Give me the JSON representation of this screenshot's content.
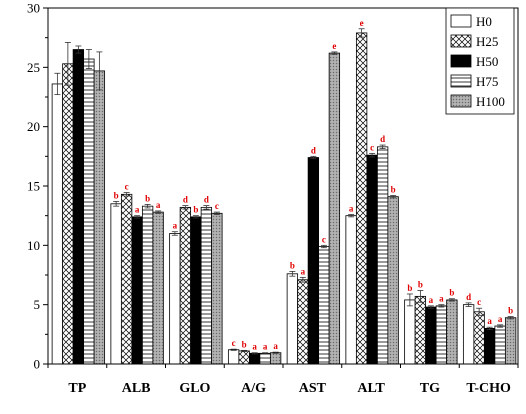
{
  "chart_data": {
    "type": "bar",
    "categories": [
      "TP",
      "ALB",
      "GLO",
      "A/G",
      "AST",
      "ALT",
      "TG",
      "T-CHO"
    ],
    "ylim": [
      0,
      30
    ],
    "yticks": [
      0,
      5,
      10,
      15,
      20,
      25,
      30
    ],
    "ytick_labels": [
      "0",
      "5",
      "10",
      "15",
      "20",
      "25",
      "30"
    ],
    "legend_position": "top-right",
    "grid": false,
    "series": [
      {
        "name": "H0",
        "pattern": "white",
        "values": [
          23.6,
          13.5,
          11.0,
          1.2,
          7.6,
          12.5,
          5.4,
          5.0
        ],
        "errors": [
          0.9,
          0.2,
          0.15,
          0.05,
          0.2,
          0.1,
          0.5,
          0.15
        ],
        "sig": [
          "",
          "b",
          "a",
          "c",
          "b",
          "a",
          "b",
          "d"
        ]
      },
      {
        "name": "H25",
        "pattern": "crosshatch",
        "values": [
          25.3,
          14.3,
          13.2,
          1.1,
          7.1,
          27.9,
          5.7,
          4.4
        ],
        "errors": [
          1.8,
          0.15,
          0.15,
          0.05,
          0.2,
          0.35,
          0.5,
          0.3
        ],
        "sig": [
          "",
          "c",
          "d",
          "b",
          "a",
          "e",
          "b",
          "c"
        ]
      },
      {
        "name": "H50",
        "pattern": "black",
        "values": [
          26.5,
          12.4,
          12.4,
          0.9,
          17.4,
          17.6,
          4.8,
          3.0
        ],
        "errors": [
          0.3,
          0.1,
          0.1,
          0.05,
          0.1,
          0.15,
          0.1,
          0.1
        ],
        "sig": [
          "",
          "a",
          "b",
          "a",
          "d",
          "c",
          "a",
          "a"
        ]
      },
      {
        "name": "H75",
        "pattern": "horizontal-lines",
        "values": [
          25.7,
          13.3,
          13.2,
          0.9,
          9.9,
          18.3,
          4.9,
          3.2
        ],
        "errors": [
          0.8,
          0.15,
          0.15,
          0.05,
          0.1,
          0.15,
          0.1,
          0.1
        ],
        "sig": [
          "",
          "b",
          "d",
          "a",
          "c",
          "d",
          "a",
          "a"
        ]
      },
      {
        "name": "H100",
        "pattern": "dotted-gray",
        "values": [
          24.7,
          12.8,
          12.7,
          0.95,
          26.2,
          14.1,
          5.4,
          3.9
        ],
        "errors": [
          1.6,
          0.1,
          0.1,
          0.05,
          0.1,
          0.1,
          0.1,
          0.1
        ],
        "sig": [
          "",
          "a",
          "c",
          "a",
          "e",
          "b",
          "b",
          "b"
        ]
      }
    ]
  }
}
